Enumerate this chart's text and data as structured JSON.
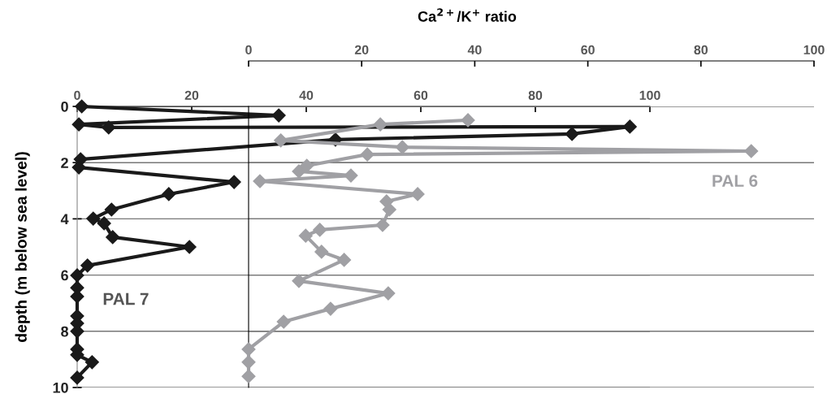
{
  "chart_data": {
    "type": "line",
    "x2label": "Ca$^{2+}$/K$^{+}$ ratio",
    "ylabel": "depth (m below sea level)",
    "xlim": [
      0,
      100
    ],
    "xticks": [
      0,
      20,
      40,
      60,
      80,
      100
    ],
    "x2lim": [
      0,
      100
    ],
    "x2ticks": [
      0,
      20,
      40,
      60,
      80,
      100
    ],
    "ylim": [
      10,
      0
    ],
    "yticks": [
      0,
      2,
      4,
      6,
      8,
      10
    ],
    "grid": "y",
    "marker": "diamond",
    "line_style": "solid",
    "series": [
      {
        "name": "PAL 7",
        "color": "#1a1a1a",
        "x": [
          0.8,
          35.2,
          0.3,
          5.5,
          96.5,
          86.4,
          45.1,
          0.6,
          0.3,
          27.4,
          16.0,
          6.0,
          2.8,
          4.7,
          6.2,
          19.6,
          1.8,
          0,
          0,
          0,
          0,
          0,
          0,
          0,
          0,
          2.6,
          0
        ],
        "values": [
          0.0,
          0.32,
          0.64,
          0.75,
          0.72,
          0.98,
          1.18,
          1.88,
          2.17,
          2.69,
          3.12,
          3.67,
          3.99,
          4.16,
          4.65,
          5.0,
          5.66,
          6.01,
          6.45,
          6.76,
          7.46,
          7.72,
          8.0,
          8.64,
          8.84,
          9.1,
          9.65
        ]
      },
      {
        "name": "PAL 6",
        "color": "#a0a0a4",
        "axis": "x2",
        "x": [
          38.8,
          23.3,
          5.7,
          27.2,
          88.9,
          21.0,
          10.3,
          8.9,
          18.1,
          2.0,
          29.9,
          24.4,
          24.9,
          23.7,
          12.6,
          10.1,
          12.9,
          16.9,
          8.9,
          24.7,
          14.5,
          6.2,
          0,
          0,
          0
        ],
        "values": [
          0.49,
          0.64,
          1.21,
          1.45,
          1.59,
          1.71,
          2.11,
          2.31,
          2.46,
          2.66,
          3.12,
          3.38,
          3.67,
          4.22,
          4.39,
          4.6,
          5.17,
          5.46,
          6.21,
          6.65,
          7.2,
          7.66,
          8.64,
          9.1,
          9.6
        ]
      }
    ]
  }
}
